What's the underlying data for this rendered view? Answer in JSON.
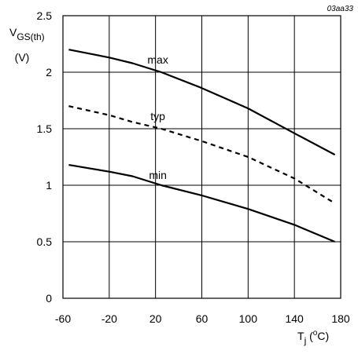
{
  "figure_code": "03aa33",
  "chart_data": {
    "type": "line",
    "ylabel_main": "V",
    "ylabel_sub": "GS(th)",
    "ylabel_unit": "(V)",
    "xlabel_main": "T",
    "xlabel_sub": "j",
    "xlabel_unit_open": " (",
    "xlabel_unit_sup": "o",
    "xlabel_unit_close": "C)",
    "xlim": [
      -60,
      180
    ],
    "ylim": [
      0,
      2.5
    ],
    "x_ticks": [
      "-60",
      "-20",
      "20",
      "60",
      "100",
      "140",
      "180"
    ],
    "y_ticks": [
      "0",
      "0.5",
      "1",
      "1.5",
      "2",
      "2.5"
    ],
    "grid": true,
    "series": [
      {
        "name": "max",
        "style": "solid",
        "x": [
          -55,
          -20,
          0,
          25,
          60,
          100,
          140,
          175
        ],
        "y": [
          2.2,
          2.13,
          2.08,
          2.0,
          1.86,
          1.68,
          1.46,
          1.27
        ]
      },
      {
        "name": "typ",
        "style": "dashed",
        "x": [
          -55,
          -20,
          0,
          25,
          60,
          100,
          140,
          175
        ],
        "y": [
          1.7,
          1.62,
          1.56,
          1.5,
          1.39,
          1.25,
          1.06,
          0.84
        ]
      },
      {
        "name": "min",
        "style": "solid",
        "x": [
          -55,
          -20,
          0,
          25,
          60,
          100,
          140,
          175
        ],
        "y": [
          1.18,
          1.12,
          1.08,
          1.0,
          0.91,
          0.79,
          0.65,
          0.5
        ]
      }
    ]
  }
}
